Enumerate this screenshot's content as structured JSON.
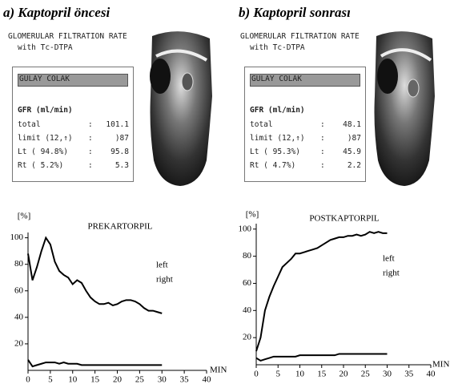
{
  "panels": [
    {
      "caption": "a) Kaptopril öncesi",
      "heading": "GLOMERULAR FILTRATION RATE",
      "method": "with Tc-DTPA",
      "patient": "GULAY COLAK",
      "gfr_label": "GFR (ml/min)",
      "rows": [
        [
          "total",
          ":",
          "101.1"
        ],
        [
          "limit (12,↑)",
          ":",
          ")87"
        ],
        [
          "Lt ( 94.8%)",
          ":",
          "95.8"
        ],
        [
          "Rt ( 5.2%)",
          ":",
          "5.3"
        ]
      ]
    },
    {
      "caption": "b) Kaptopril sonrası",
      "heading": "GLOMERULAR FILTRATION RATE",
      "method": "with Tc-DTPA",
      "patient": "GULAY COLAK",
      "gfr_label": "GFR (ml/min)",
      "rows": [
        [
          "total",
          ":",
          "48.1"
        ],
        [
          "limit (12,↑)",
          ":",
          ")87"
        ],
        [
          "Lt ( 95.3%)",
          ":",
          "45.9"
        ],
        [
          "Rt ( 4.7%)",
          ":",
          "2.2"
        ]
      ]
    }
  ],
  "chart_data": [
    {
      "type": "line",
      "title": "PREKARTORPIL",
      "y_label": "[%]",
      "x_label": "MIN",
      "x": [
        0,
        1,
        2,
        3,
        4,
        5,
        6,
        7,
        8,
        9,
        10,
        11,
        12,
        13,
        14,
        15,
        16,
        17,
        18,
        19,
        20,
        21,
        22,
        23,
        24,
        25,
        26,
        27,
        28,
        29,
        30
      ],
      "series": [
        {
          "name": "left",
          "color": "#000",
          "values": [
            88,
            68,
            78,
            90,
            100,
            95,
            82,
            75,
            72,
            70,
            65,
            68,
            66,
            60,
            55,
            52,
            50,
            50,
            51,
            49,
            50,
            52,
            53,
            53,
            52,
            50,
            47,
            45,
            45,
            44,
            43
          ]
        },
        {
          "name": "right",
          "color": "#000",
          "values": [
            8,
            3,
            4,
            5,
            6,
            6,
            6,
            5,
            6,
            5,
            5,
            5,
            4,
            4,
            4,
            4,
            4,
            4,
            4,
            4,
            4,
            4,
            4,
            4,
            4,
            4,
            4,
            4,
            4,
            4,
            4
          ]
        }
      ],
      "xlim": [
        0,
        40
      ],
      "xticks": [
        0,
        5,
        10,
        15,
        20,
        25,
        30,
        35,
        40
      ],
      "ylim": [
        0,
        104
      ],
      "yticks": [
        20,
        40,
        60,
        80,
        100
      ]
    },
    {
      "type": "line",
      "title": "POSTKAPTORPIL",
      "y_label": "[%]",
      "x_label": "MIN",
      "x": [
        0,
        1,
        2,
        3,
        4,
        5,
        6,
        7,
        8,
        9,
        10,
        11,
        12,
        13,
        14,
        15,
        16,
        17,
        18,
        19,
        20,
        21,
        22,
        23,
        24,
        25,
        26,
        27,
        28,
        29,
        30
      ],
      "series": [
        {
          "name": "left",
          "color": "#000",
          "values": [
            10,
            20,
            40,
            50,
            58,
            65,
            72,
            75,
            78,
            82,
            82,
            83,
            84,
            85,
            86,
            88,
            90,
            92,
            93,
            94,
            94,
            95,
            95,
            96,
            95,
            96,
            98,
            97,
            98,
            97,
            97
          ]
        },
        {
          "name": "right",
          "color": "#000",
          "values": [
            5,
            3,
            4,
            5,
            6,
            6,
            6,
            6,
            6,
            6,
            7,
            7,
            7,
            7,
            7,
            7,
            7,
            7,
            7,
            8,
            8,
            8,
            8,
            8,
            8,
            8,
            8,
            8,
            8,
            8,
            8
          ]
        }
      ],
      "xlim": [
        0,
        40
      ],
      "xticks": [
        0,
        5,
        10,
        15,
        20,
        25,
        30,
        35,
        40
      ],
      "ylim": [
        0,
        104
      ],
      "yticks": [
        20,
        40,
        60,
        80,
        100
      ]
    }
  ]
}
